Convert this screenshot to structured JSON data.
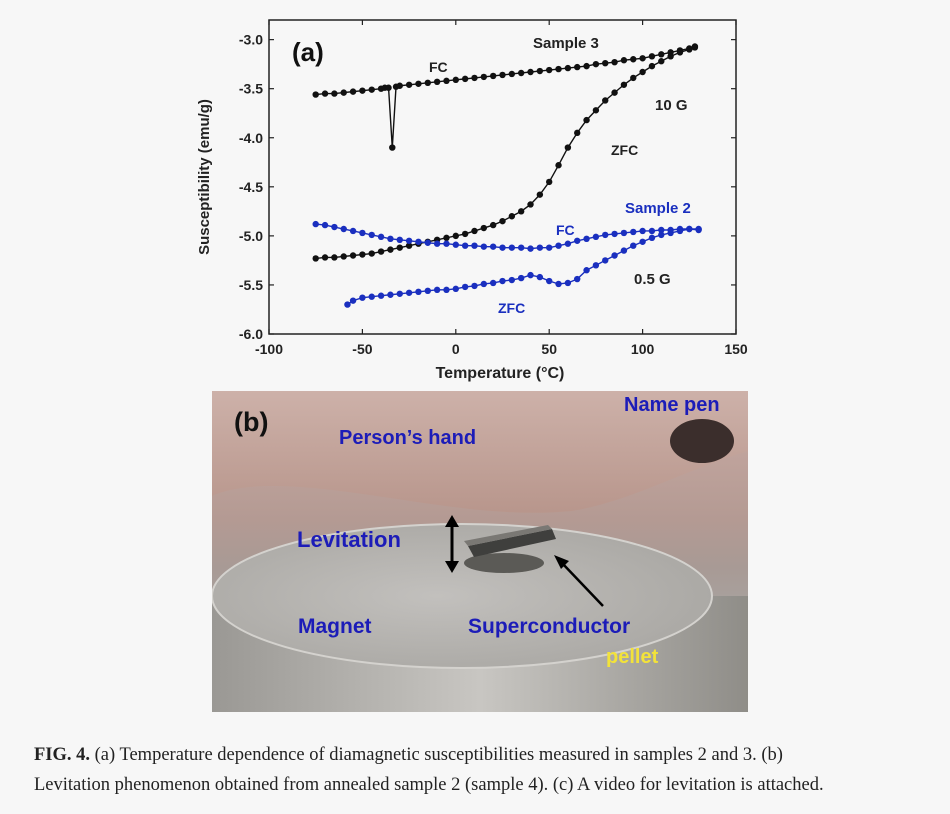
{
  "panel_a": {
    "label": "(a)",
    "annotations": {
      "sample3": "Sample 3",
      "fc3": "FC",
      "field3": "10 G",
      "zfc3": "ZFC",
      "sample2": "Sample 2",
      "fc2": "FC",
      "field2": "0.5 G",
      "zfc2": "ZFC"
    },
    "colors": {
      "sample3": "#111111",
      "sample2": "#1a2fbf"
    }
  },
  "chart_data": {
    "type": "scatter",
    "xlabel": "Temperature (°C)",
    "ylabel": "Susceptibility (emu/g)",
    "xlim": [
      -100,
      150
    ],
    "ylim": [
      -6.0,
      -2.8
    ],
    "xticks": [
      "-100",
      "-50",
      "0",
      "50",
      "100",
      "150"
    ],
    "yticks": [
      "-3.0",
      "-3.5",
      "-4.0",
      "-4.5",
      "-5.0",
      "-5.5",
      "-6.0"
    ],
    "grid": false,
    "series": [
      {
        "name": "Sample 3 FC",
        "color": "#111111",
        "x": [
          -75,
          -70,
          -65,
          -60,
          -55,
          -50,
          -45,
          -40,
          -38,
          -36,
          -34,
          -32,
          -30,
          -25,
          -20,
          -15,
          -10,
          -5,
          0,
          5,
          10,
          15,
          20,
          25,
          30,
          35,
          40,
          45,
          50,
          55,
          60,
          65,
          70,
          75,
          80,
          85,
          90,
          95,
          100,
          105,
          110,
          115,
          120,
          125,
          128
        ],
        "y": [
          -3.56,
          -3.55,
          -3.55,
          -3.54,
          -3.53,
          -3.52,
          -3.51,
          -3.5,
          -3.49,
          -3.49,
          -4.1,
          -3.48,
          -3.47,
          -3.46,
          -3.45,
          -3.44,
          -3.43,
          -3.42,
          -3.41,
          -3.4,
          -3.39,
          -3.38,
          -3.37,
          -3.36,
          -3.35,
          -3.34,
          -3.33,
          -3.32,
          -3.31,
          -3.3,
          -3.29,
          -3.28,
          -3.27,
          -3.25,
          -3.24,
          -3.23,
          -3.21,
          -3.2,
          -3.19,
          -3.17,
          -3.15,
          -3.13,
          -3.11,
          -3.09,
          -3.07
        ]
      },
      {
        "name": "Sample 3 ZFC",
        "color": "#111111",
        "x": [
          -75,
          -70,
          -65,
          -60,
          -55,
          -50,
          -45,
          -40,
          -35,
          -30,
          -25,
          -20,
          -15,
          -10,
          -5,
          0,
          5,
          10,
          15,
          20,
          25,
          30,
          35,
          40,
          45,
          50,
          55,
          60,
          65,
          70,
          75,
          80,
          85,
          90,
          95,
          100,
          105,
          110,
          115,
          120,
          125,
          128
        ],
        "y": [
          -5.23,
          -5.22,
          -5.22,
          -5.21,
          -5.2,
          -5.19,
          -5.18,
          -5.16,
          -5.14,
          -5.12,
          -5.1,
          -5.08,
          -5.06,
          -5.04,
          -5.02,
          -5.0,
          -4.98,
          -4.95,
          -4.92,
          -4.89,
          -4.85,
          -4.8,
          -4.75,
          -4.68,
          -4.58,
          -4.45,
          -4.28,
          -4.1,
          -3.95,
          -3.82,
          -3.72,
          -3.62,
          -3.54,
          -3.46,
          -3.39,
          -3.33,
          -3.27,
          -3.22,
          -3.17,
          -3.13,
          -3.1,
          -3.08
        ]
      },
      {
        "name": "Sample 2 FC",
        "color": "#1a2fbf",
        "x": [
          -75,
          -70,
          -65,
          -60,
          -55,
          -50,
          -45,
          -40,
          -35,
          -30,
          -25,
          -20,
          -15,
          -10,
          -5,
          0,
          5,
          10,
          15,
          20,
          25,
          30,
          35,
          40,
          45,
          50,
          55,
          60,
          65,
          70,
          75,
          80,
          85,
          90,
          95,
          100,
          105,
          110,
          115,
          120,
          125,
          130
        ],
        "y": [
          -4.88,
          -4.89,
          -4.91,
          -4.93,
          -4.95,
          -4.97,
          -4.99,
          -5.01,
          -5.03,
          -5.04,
          -5.05,
          -5.06,
          -5.07,
          -5.08,
          -5.08,
          -5.09,
          -5.1,
          -5.1,
          -5.11,
          -5.11,
          -5.12,
          -5.12,
          -5.12,
          -5.13,
          -5.12,
          -5.12,
          -5.1,
          -5.08,
          -5.05,
          -5.03,
          -5.01,
          -4.99,
          -4.98,
          -4.97,
          -4.96,
          -4.95,
          -4.95,
          -4.94,
          -4.94,
          -4.93,
          -4.93,
          -4.94
        ]
      },
      {
        "name": "Sample 2 ZFC",
        "color": "#1a2fbf",
        "x": [
          -58,
          -55,
          -50,
          -45,
          -40,
          -35,
          -30,
          -25,
          -20,
          -15,
          -10,
          -5,
          0,
          5,
          10,
          15,
          20,
          25,
          30,
          35,
          40,
          45,
          50,
          55,
          60,
          65,
          70,
          75,
          80,
          85,
          90,
          95,
          100,
          105,
          110,
          115,
          120,
          125,
          130
        ],
        "y": [
          -5.7,
          -5.66,
          -5.63,
          -5.62,
          -5.61,
          -5.6,
          -5.59,
          -5.58,
          -5.57,
          -5.56,
          -5.55,
          -5.55,
          -5.54,
          -5.52,
          -5.51,
          -5.49,
          -5.48,
          -5.46,
          -5.45,
          -5.43,
          -5.4,
          -5.42,
          -5.46,
          -5.49,
          -5.48,
          -5.44,
          -5.35,
          -5.3,
          -5.25,
          -5.2,
          -5.15,
          -5.1,
          -5.06,
          -5.02,
          -4.99,
          -4.97,
          -4.95,
          -4.93,
          -4.93
        ]
      }
    ]
  },
  "panel_b": {
    "label": "(b)",
    "labels": {
      "name_pen": "Name pen",
      "hand": "Person’s hand",
      "levitation": "Levitation",
      "magnet": "Magnet",
      "superconductor": "Superconductor",
      "pellet": "pellet"
    },
    "colors": {
      "label_blue": "#1c1cb8",
      "pellet_yellow": "#f2e23a"
    }
  },
  "caption": {
    "fig_label": "FIG. 4.",
    "line1": "(a) Temperature dependence of diamagnetic susceptibilities measured in samples 2 and 3. (b)",
    "line2": "Levitation phenomenon obtained from annealed sample 2 (sample 4). (c) A video for levitation is attached."
  }
}
